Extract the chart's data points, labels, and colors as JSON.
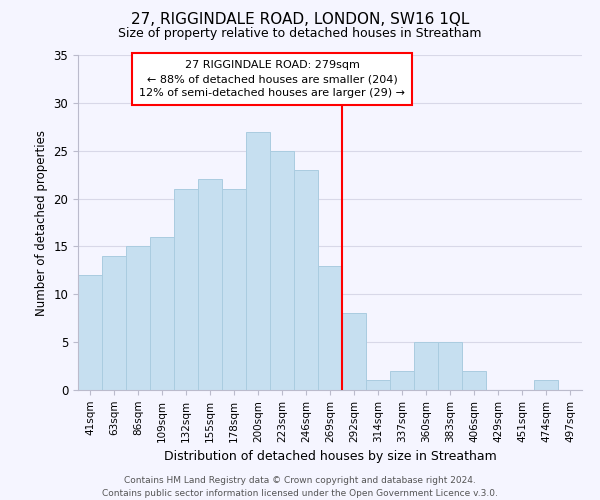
{
  "title": "27, RIGGINDALE ROAD, LONDON, SW16 1QL",
  "subtitle": "Size of property relative to detached houses in Streatham",
  "xlabel": "Distribution of detached houses by size in Streatham",
  "ylabel": "Number of detached properties",
  "footer_line1": "Contains HM Land Registry data © Crown copyright and database right 2024.",
  "footer_line2": "Contains public sector information licensed under the Open Government Licence v.3.0.",
  "bar_labels": [
    "41sqm",
    "63sqm",
    "86sqm",
    "109sqm",
    "132sqm",
    "155sqm",
    "178sqm",
    "200sqm",
    "223sqm",
    "246sqm",
    "269sqm",
    "292sqm",
    "314sqm",
    "337sqm",
    "360sqm",
    "383sqm",
    "406sqm",
    "429sqm",
    "451sqm",
    "474sqm",
    "497sqm"
  ],
  "bar_heights": [
    12,
    14,
    15,
    16,
    21,
    22,
    21,
    27,
    25,
    23,
    13,
    8,
    1,
    2,
    5,
    5,
    2,
    0,
    0,
    1,
    0
  ],
  "bar_color": "#c6dff0",
  "bar_edge_color": "#aacce0",
  "vline_color": "red",
  "vline_x": 10.5,
  "ylim": [
    0,
    35
  ],
  "yticks": [
    0,
    5,
    10,
    15,
    20,
    25,
    30,
    35
  ],
  "annotation_title": "27 RIGGINDALE ROAD: 279sqm",
  "annotation_line1": "← 88% of detached houses are smaller (204)",
  "annotation_line2": "12% of semi-detached houses are larger (29) →",
  "grid_color": "#d8d8e8",
  "background_color": "#f5f5ff"
}
